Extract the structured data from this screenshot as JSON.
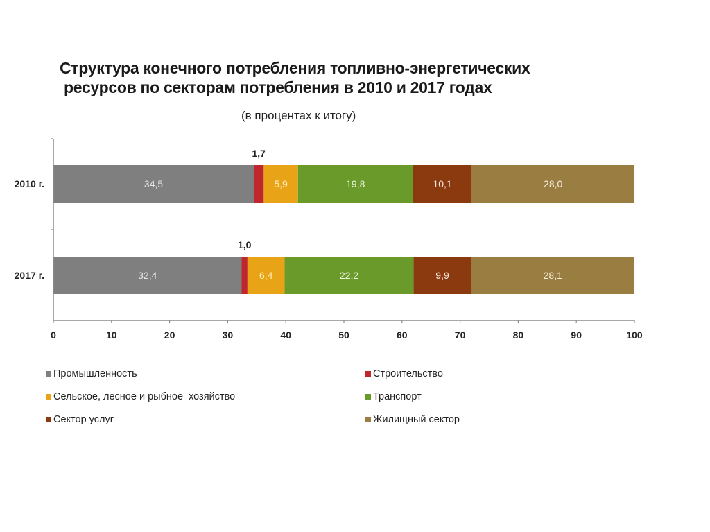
{
  "chart_data": {
    "type": "bar",
    "orientation": "horizontal",
    "stacked": true,
    "title_line1": "Структура конечного потребления топливно-энергетических",
    "title_line2": "ресурсов по секторам потребления  в 2010 и 2017 годах",
    "subtitle": "(в процентах к итогу)",
    "xlabel": "",
    "ylabel": "",
    "xlim": [
      0,
      100
    ],
    "x_ticks": [
      "0",
      "10",
      "20",
      "30",
      "40",
      "50",
      "60",
      "70",
      "80",
      "90",
      "100"
    ],
    "categories": [
      "2010 г.",
      "2017 г."
    ],
    "series": [
      {
        "name": "Промышленность",
        "color": "#7f7f7f",
        "values": [
          34.5,
          32.4
        ],
        "labels": [
          "34,5",
          "32,4"
        ],
        "label_color": "#e6e6e6",
        "label_position": "inside"
      },
      {
        "name": "Строительство",
        "color": "#c0272d",
        "values": [
          1.7,
          1.0
        ],
        "labels": [
          "1,7",
          "1,0"
        ],
        "label_color": "#222222",
        "label_position": "above"
      },
      {
        "name": "Сельское, лесное и рыбное  хозяйство",
        "color": "#e8a317",
        "values": [
          5.9,
          6.4
        ],
        "labels": [
          "5,9",
          "6,4"
        ],
        "label_color": "#fff3c4",
        "label_position": "inside"
      },
      {
        "name": "Транспорт",
        "color": "#6a9a2a",
        "values": [
          19.8,
          22.2
        ],
        "labels": [
          "19,8",
          "22,2"
        ],
        "label_color": "#eef5e0",
        "label_position": "inside"
      },
      {
        "name": "Сектор услуг",
        "color": "#8b3a0f",
        "values": [
          10.1,
          9.9
        ],
        "labels": [
          "10,1",
          "9,9"
        ],
        "label_color": "#f5e6dc",
        "label_position": "inside"
      },
      {
        "name": "Жилищный сектор",
        "color": "#9a7d40",
        "values": [
          28.0,
          28.1
        ],
        "labels": [
          "28,0",
          "28,1"
        ],
        "label_color": "#f5efe0",
        "label_position": "inside"
      }
    ],
    "legend": {
      "position": "bottom",
      "columns": 2
    },
    "grid": false
  }
}
